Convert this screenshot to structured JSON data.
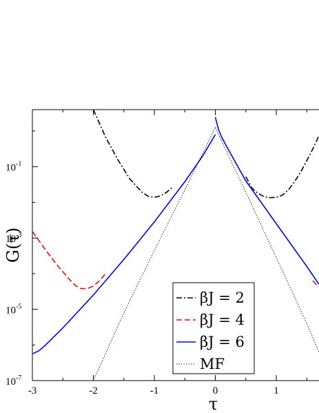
{
  "chart_data": {
    "type": "line",
    "title": "",
    "xlabel": "τ",
    "ylabel": "G(τ)",
    "xlim": [
      -3.0,
      1.7
    ],
    "ylim_log10": [
      -7,
      0.6
    ],
    "yscale": "log",
    "grid": false,
    "legend_position": "bottom-right",
    "x_ticks": [
      {
        "value": -3,
        "label": "-3"
      },
      {
        "value": -2,
        "label": "-2"
      },
      {
        "value": -1,
        "label": "-1"
      },
      {
        "value": 0,
        "label": "0"
      },
      {
        "value": 1,
        "label": "1"
      }
    ],
    "y_ticks": [
      {
        "exp": -7,
        "label": "10",
        "sup": "-7"
      },
      {
        "exp": -5,
        "label": "10",
        "sup": "-5"
      },
      {
        "exp": -3,
        "label": "10",
        "sup": "-3"
      },
      {
        "exp": -1,
        "label": "10",
        "sup": "-1"
      }
    ],
    "series": [
      {
        "name": "βJ = 2",
        "color": "#000000",
        "dash": "8,3,2,3",
        "segments": [
          [
            [
              -2.0,
              0.6
            ],
            [
              -1.8,
              -0.17
            ],
            [
              -1.6,
              -0.8
            ],
            [
              -1.4,
              -1.35
            ],
            [
              -1.2,
              -1.72
            ],
            [
              -1.1,
              -1.83
            ],
            [
              -1.0,
              -1.86
            ],
            [
              -0.9,
              -1.82
            ],
            [
              -0.8,
              -1.72
            ],
            [
              -0.7,
              -1.57
            ]
          ],
          [
            [
              0.5,
              -1.28
            ],
            [
              0.6,
              -1.6
            ],
            [
              0.7,
              -1.75
            ],
            [
              0.8,
              -1.84
            ],
            [
              0.9,
              -1.87
            ],
            [
              1.0,
              -1.86
            ],
            [
              1.1,
              -1.8
            ],
            [
              1.2,
              -1.65
            ],
            [
              1.3,
              -1.42
            ],
            [
              1.4,
              -1.15
            ],
            [
              1.5,
              -0.83
            ],
            [
              1.6,
              -0.5
            ],
            [
              1.7,
              -0.13
            ]
          ]
        ]
      },
      {
        "name": "βJ = 4",
        "color": "#ff0000",
        "dash": "8,4",
        "segments": [
          [
            [
              -3.0,
              -2.82
            ],
            [
              -2.8,
              -3.3
            ],
            [
              -2.6,
              -3.75
            ],
            [
              -2.4,
              -4.15
            ],
            [
              -2.3,
              -4.33
            ],
            [
              -2.2,
              -4.42
            ],
            [
              -2.1,
              -4.42
            ],
            [
              -2.0,
              -4.35
            ],
            [
              -1.9,
              -4.2
            ],
            [
              -1.8,
              -4.0
            ]
          ],
          [
            [
              1.6,
              -4.2
            ],
            [
              1.65,
              -4.3
            ],
            [
              1.7,
              -4.35
            ]
          ]
        ]
      },
      {
        "name": "βJ = 6",
        "color": "#0000ff",
        "dash": "",
        "segments": [
          [
            [
              -3.0,
              -6.25
            ],
            [
              -2.9,
              -6.17
            ],
            [
              -2.8,
              -6.03
            ],
            [
              -2.5,
              -5.52
            ],
            [
              -2.0,
              -4.6
            ],
            [
              -1.5,
              -3.6
            ],
            [
              -1.0,
              -2.55
            ],
            [
              -0.5,
              -1.42
            ],
            [
              -0.2,
              -0.68
            ],
            [
              0.0,
              -0.1
            ]
          ],
          [
            [
              0.0,
              0.39
            ],
            [
              0.05,
              0.05
            ],
            [
              0.1,
              -0.16
            ],
            [
              0.2,
              -0.48
            ],
            [
              0.5,
              -1.4
            ],
            [
              1.0,
              -2.6
            ],
            [
              1.5,
              -3.8
            ],
            [
              1.7,
              -4.3
            ]
          ]
        ]
      },
      {
        "name": "MF",
        "color": "#000000",
        "dash": "1.2,2.3",
        "segments": [
          [
            [
              -2.0,
              -7.0
            ],
            [
              -1.5,
              -5.1
            ],
            [
              -1.0,
              -3.35
            ],
            [
              -0.5,
              -1.65
            ],
            [
              0.0,
              0.1
            ]
          ],
          [
            [
              0.0,
              0.1
            ],
            [
              0.5,
              -1.72
            ],
            [
              1.0,
              -3.55
            ],
            [
              1.5,
              -5.4
            ],
            [
              1.7,
              -6.2
            ]
          ]
        ]
      }
    ]
  }
}
